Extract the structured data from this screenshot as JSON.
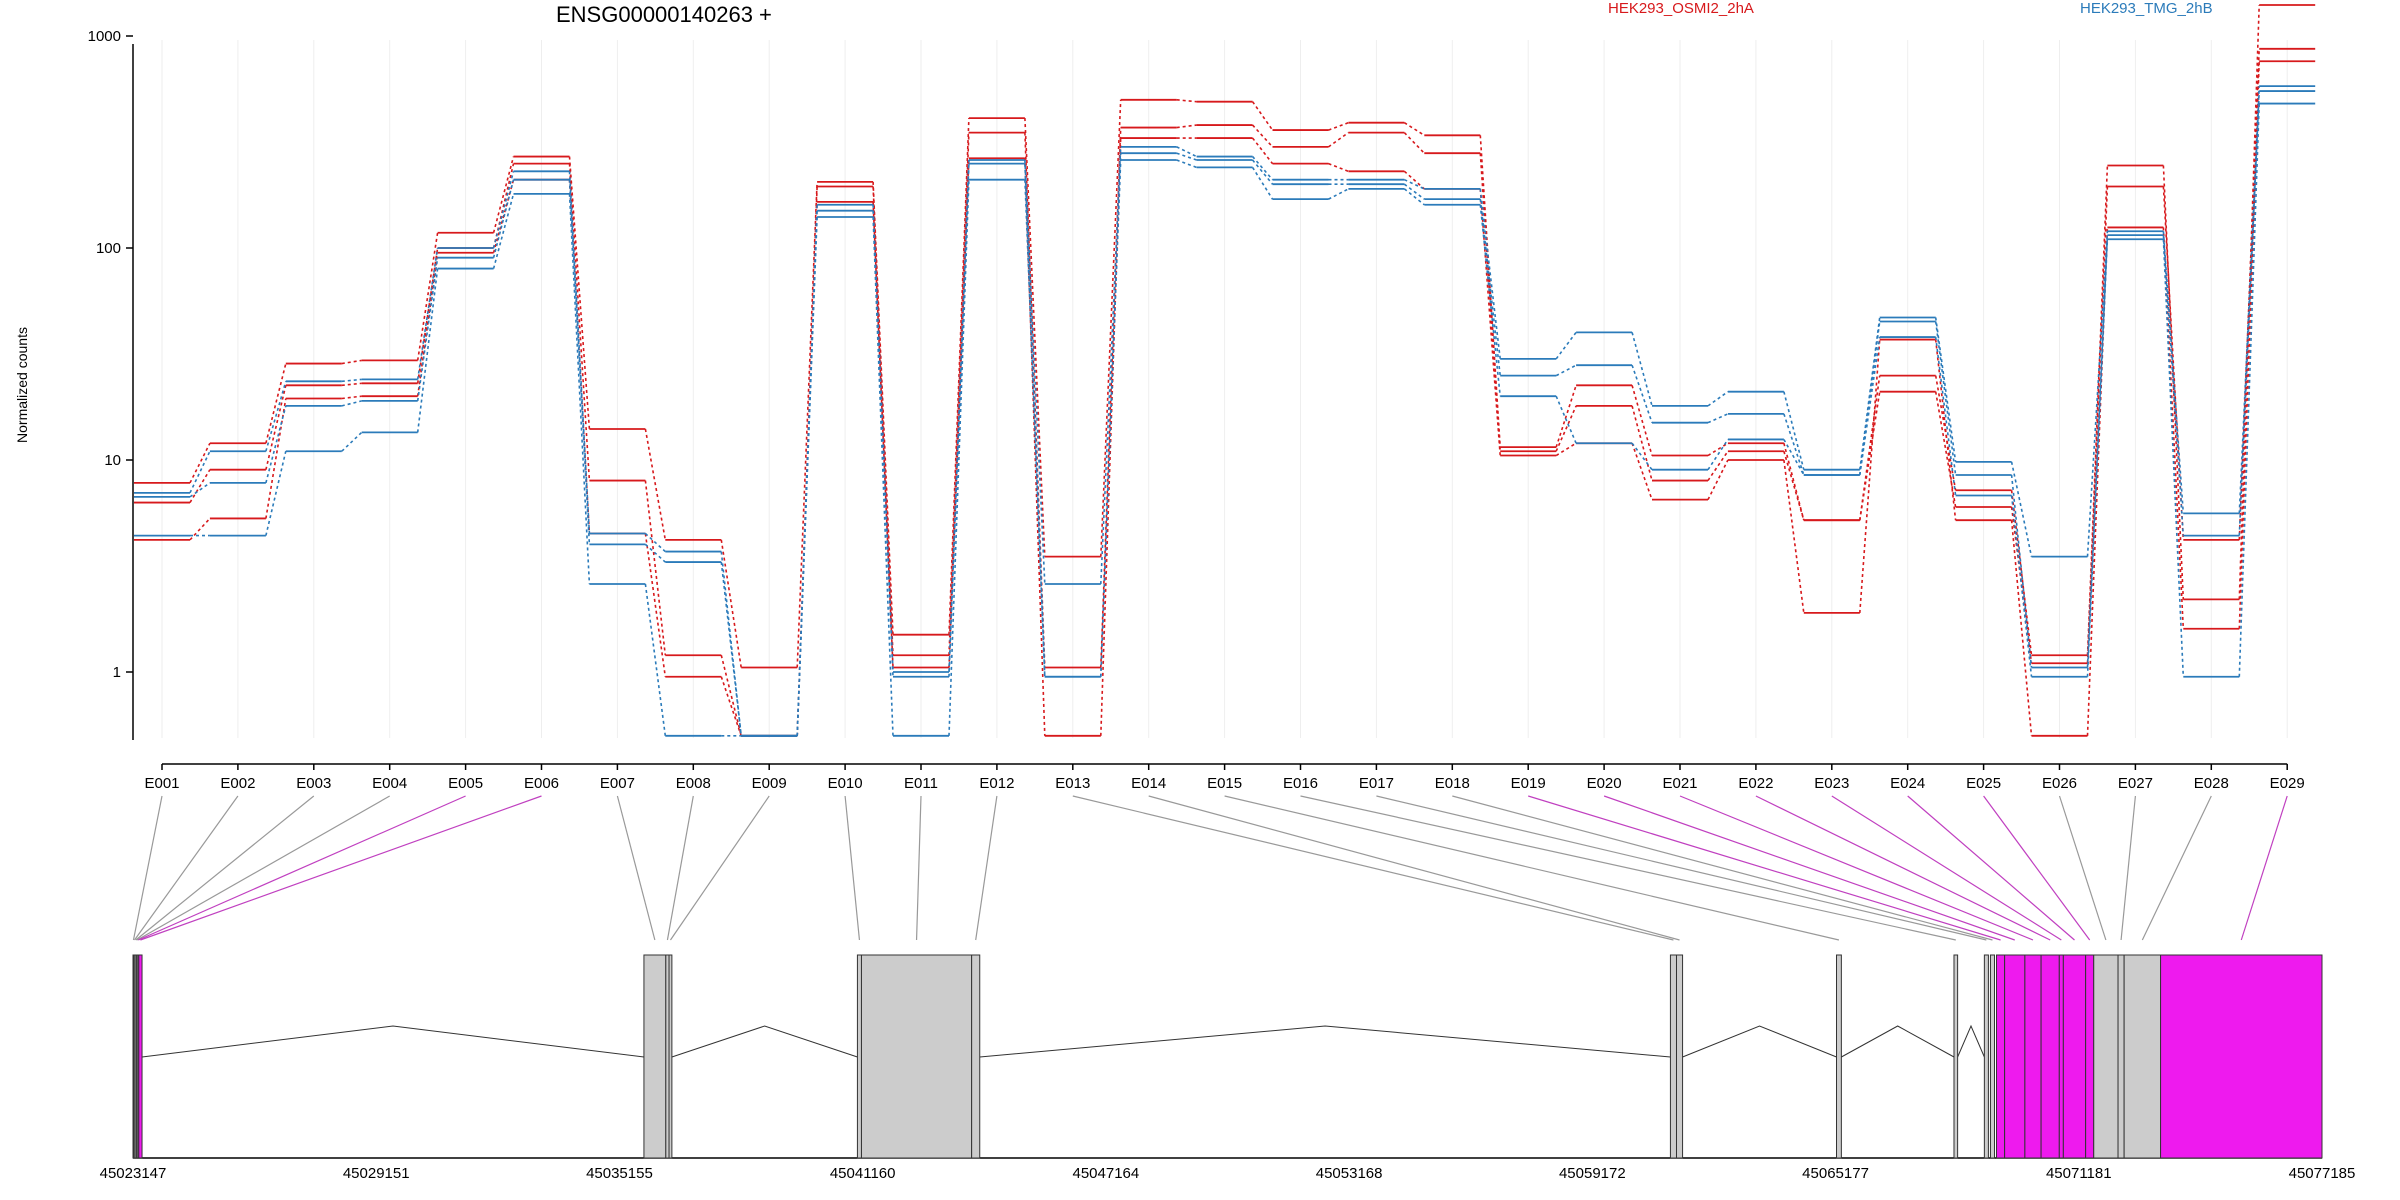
{
  "title": "ENSG00000140263 +",
  "legend": [
    {
      "label": "HEK293_OSMI2_2hA",
      "color": "#d7191c"
    },
    {
      "label": "HEK293_TMG_2hB",
      "color": "#2b7bba"
    }
  ],
  "colors": {
    "highlight": "#ee1aee",
    "gray_exon": "#cccccc",
    "grid": "#eeeeee"
  },
  "chart_data": {
    "type": "line",
    "title": "ENSG00000140263 +",
    "ylabel": "Normalized counts",
    "yscale": "log",
    "ylim": [
      0.5,
      1800
    ],
    "yticks": [
      1,
      10,
      100,
      1000
    ],
    "ytick_labels": [
      "1",
      "10",
      "100",
      "1000"
    ],
    "categories": [
      "E001",
      "E002",
      "E003",
      "E004",
      "E005",
      "E006",
      "E007",
      "E008",
      "E009",
      "E010",
      "E011",
      "E012",
      "E013",
      "E014",
      "E015",
      "E016",
      "E017",
      "E018",
      "E019",
      "E020",
      "E021",
      "E022",
      "E023",
      "E024",
      "E025",
      "E026",
      "E027",
      "E028",
      "E029"
    ],
    "grid": true,
    "series": [
      {
        "group": "HEK293_OSMI2_2hA",
        "color": "#d7191c",
        "values": [
          7.8,
          12.0,
          28.5,
          29.5,
          118,
          270,
          14.0,
          4.2,
          1.05,
          205,
          1.5,
          410,
          3.5,
          500,
          490,
          360,
          390,
          340,
          11.5,
          22.5,
          10.5,
          12.0,
          5.2,
          25.0,
          7.2,
          1.2,
          245,
          2.2,
          1400
        ]
      },
      {
        "group": "HEK293_OSMI2_2hA",
        "color": "#d7191c",
        "values": [
          6.3,
          9.0,
          22.5,
          23.0,
          100,
          250,
          8.0,
          1.2,
          0.5,
          195,
          1.2,
          350,
          1.05,
          370,
          380,
          300,
          350,
          280,
          11.0,
          18.0,
          8.0,
          11.0,
          5.2,
          21.0,
          6.0,
          1.1,
          195,
          4.2,
          870
        ]
      },
      {
        "group": "HEK293_OSMI2_2hA",
        "color": "#d7191c",
        "values": [
          4.2,
          5.3,
          19.5,
          20.0,
          95,
          210,
          4.5,
          0.95,
          0.5,
          165,
          1.05,
          265,
          0.5,
          330,
          330,
          250,
          230,
          190,
          10.5,
          12.0,
          6.5,
          10.0,
          1.9,
          37.0,
          5.2,
          0.5,
          125,
          1.6,
          760
        ]
      },
      {
        "group": "HEK293_TMG_2hB",
        "color": "#2b7bba",
        "values": [
          7.0,
          11.0,
          23.5,
          24.0,
          100,
          230,
          4.5,
          3.7,
          0.5,
          160,
          1.0,
          260,
          2.6,
          300,
          270,
          210,
          210,
          190,
          30.0,
          40.0,
          18.0,
          21.0,
          9.0,
          47.0,
          9.8,
          3.5,
          120,
          5.6,
          580
        ]
      },
      {
        "group": "HEK293_TMG_2hB",
        "color": "#2b7bba",
        "values": [
          6.7,
          7.8,
          18.0,
          19.0,
          90,
          210,
          4.0,
          3.3,
          0.5,
          150,
          0.95,
          250,
          0.95,
          280,
          260,
          200,
          200,
          170,
          25.0,
          28.0,
          15.0,
          16.5,
          8.5,
          45.0,
          8.5,
          1.05,
          115,
          4.4,
          550
        ]
      },
      {
        "group": "HEK293_TMG_2hB",
        "color": "#2b7bba",
        "values": [
          4.4,
          4.4,
          11.0,
          13.5,
          80,
          180,
          2.6,
          0.5,
          0.5,
          140,
          0.5,
          210,
          0.95,
          260,
          240,
          170,
          190,
          160,
          20.0,
          12.0,
          9.0,
          12.5,
          8.5,
          38.0,
          6.8,
          0.95,
          110,
          0.95,
          480
        ]
      }
    ]
  },
  "gene_model": {
    "coord_start": 45023147,
    "coord_end": 45077185,
    "coord_ticks": [
      "45023147",
      "45029151",
      "45035155",
      "45041160",
      "45047164",
      "45053168",
      "45059172",
      "45065177",
      "45071181",
      "45077185"
    ],
    "exons": [
      {
        "id": "E001",
        "start": 45023147,
        "end": 45023170,
        "highlight": false
      },
      {
        "id": "E002",
        "start": 45023170,
        "end": 45023200,
        "highlight": false
      },
      {
        "id": "E003",
        "start": 45023200,
        "end": 45023235,
        "highlight": false
      },
      {
        "id": "E004",
        "start": 45023235,
        "end": 45023265,
        "highlight": false
      },
      {
        "id": "E005",
        "start": 45023265,
        "end": 45023290,
        "highlight": true
      },
      {
        "id": "E006",
        "start": 45023290,
        "end": 45023370,
        "highlight": true
      },
      {
        "id": "E007",
        "start": 45035760,
        "end": 45036300,
        "highlight": false
      },
      {
        "id": "E008",
        "start": 45036300,
        "end": 45036380,
        "highlight": false
      },
      {
        "id": "E009",
        "start": 45036380,
        "end": 45036450,
        "highlight": false
      },
      {
        "id": "E010",
        "start": 45041030,
        "end": 45041130,
        "highlight": false
      },
      {
        "id": "E011",
        "start": 45041130,
        "end": 45043850,
        "highlight": false
      },
      {
        "id": "E012",
        "start": 45043850,
        "end": 45044050,
        "highlight": false
      },
      {
        "id": "E013",
        "start": 45061100,
        "end": 45061250,
        "highlight": false
      },
      {
        "id": "E014",
        "start": 45061250,
        "end": 45061400,
        "highlight": false
      },
      {
        "id": "E015",
        "start": 45065200,
        "end": 45065320,
        "highlight": false
      },
      {
        "id": "E016",
        "start": 45068100,
        "end": 45068190,
        "highlight": false
      },
      {
        "id": "E017",
        "start": 45068850,
        "end": 45068950,
        "highlight": false
      },
      {
        "id": "E018",
        "start": 45069000,
        "end": 45069100,
        "highlight": false
      },
      {
        "id": "E019",
        "start": 45069150,
        "end": 45069350,
        "highlight": true
      },
      {
        "id": "E020",
        "start": 45069350,
        "end": 45069850,
        "highlight": true
      },
      {
        "id": "E021",
        "start": 45069850,
        "end": 45070250,
        "highlight": true
      },
      {
        "id": "E022",
        "start": 45070250,
        "end": 45070700,
        "highlight": true
      },
      {
        "id": "E023",
        "start": 45070700,
        "end": 45070800,
        "highlight": true
      },
      {
        "id": "E024",
        "start": 45070800,
        "end": 45071350,
        "highlight": true
      },
      {
        "id": "E025",
        "start": 45071350,
        "end": 45071550,
        "highlight": true
      },
      {
        "id": "E026",
        "start": 45071550,
        "end": 45072150,
        "highlight": false
      },
      {
        "id": "E027",
        "start": 45072150,
        "end": 45072300,
        "highlight": false
      },
      {
        "id": "E028",
        "start": 45072300,
        "end": 45073200,
        "highlight": false
      },
      {
        "id": "E029",
        "start": 45073200,
        "end": 45077185,
        "highlight": true
      }
    ]
  }
}
